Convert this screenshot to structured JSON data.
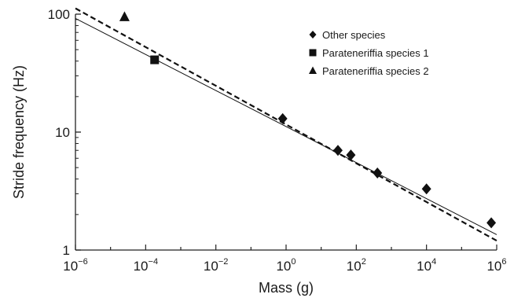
{
  "chart_data": {
    "type": "scatter",
    "x_scale": "log",
    "y_scale": "log",
    "xlim": [
      1e-06,
      1000000
    ],
    "ylim": [
      1,
      100
    ],
    "xlabel": "Mass (g)",
    "ylabel": "Stride frequency (Hz)",
    "grid": false,
    "legend_position": "top-right",
    "x_ticks": [
      {
        "base": "10",
        "exp": "−6"
      },
      {
        "base": "10",
        "exp": "−4"
      },
      {
        "base": "10",
        "exp": "−2"
      },
      {
        "base": "10",
        "exp": "0"
      },
      {
        "base": "10",
        "exp": "2"
      },
      {
        "base": "10",
        "exp": "4"
      },
      {
        "base": "10",
        "exp": "6"
      }
    ],
    "y_ticks": [
      "1",
      "10",
      "100"
    ],
    "series": [
      {
        "name": "Other species",
        "marker": "diamond",
        "points": [
          {
            "x": 0.8,
            "y": 13.0
          },
          {
            "x": 30,
            "y": 7.0
          },
          {
            "x": 70,
            "y": 6.4
          },
          {
            "x": 400,
            "y": 4.5
          },
          {
            "x": 10000,
            "y": 3.3
          },
          {
            "x": 700000,
            "y": 1.7
          }
        ]
      },
      {
        "name": "Parateneriffia species 1",
        "marker": "square",
        "points": [
          {
            "x": 0.00018,
            "y": 41
          }
        ]
      },
      {
        "name": "Parateneriffia species 2",
        "marker": "triangle",
        "points": [
          {
            "x": 2.5e-05,
            "y": 95
          }
        ]
      }
    ],
    "fit_lines": [
      {
        "style": "solid",
        "x": [
          1e-06,
          1000000
        ],
        "y": [
          92,
          1.35
        ]
      },
      {
        "style": "dashed",
        "x": [
          1e-06,
          1000000
        ],
        "y": [
          112,
          1.2
        ]
      }
    ],
    "colors": {
      "markers": "#111111",
      "lines": "#111111",
      "axes": "#222222"
    }
  }
}
